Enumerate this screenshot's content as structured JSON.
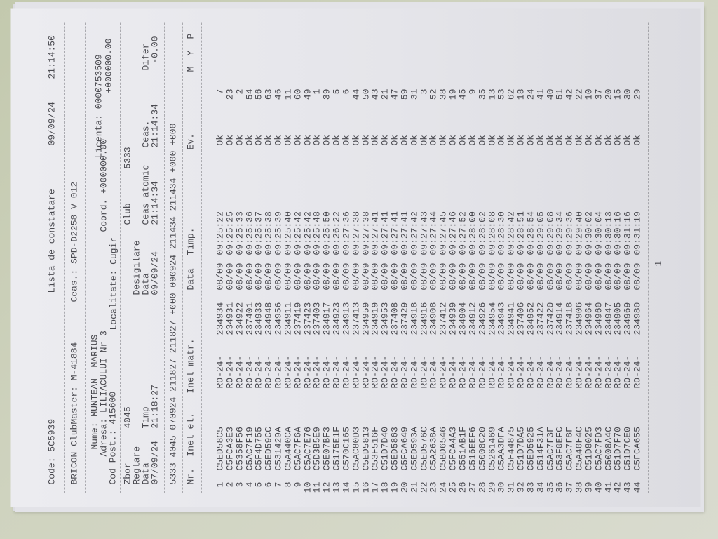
{
  "header": {
    "code": "Code: 5C5939",
    "title": "Lista de constatare",
    "print_date": "09/09/24",
    "print_time": "21:14:50",
    "clubmaster": "BRICON ClubMaster: M-41884",
    "clock": "Ceas.: SPD-D2258 V 012"
  },
  "owner": {
    "name": "Nume: MUNTEAN  MARIUS",
    "address": "Adresa: LILIACULUI Nr 3",
    "postal": "Cod Post.: 415600",
    "locality": "Localitate: Cugir",
    "coord": "Coord. +000000.00",
    "coord2": "+000000.00",
    "license": "Licenta: 0000753509"
  },
  "race": {
    "zbor_label": "Zbor",
    "zbor": "4045",
    "club_label": "Club",
    "club": "5333",
    "reglare": "Reglare",
    "desigilare": "Desigilare",
    "data_label": "Data",
    "timp_label": "Timp",
    "data2_label": "Data",
    "ceas_atomic_label": "Ceas atomic",
    "ceas_label": "Ceas.",
    "difer_label": "Difer",
    "reg_date": "07/09/24",
    "reg_time": "21:18:27",
    "des_date": "09/09/24",
    "atomic_time": "21:14:34",
    "clock_time": "21:14:34",
    "difer": "-0.00",
    "code_line": "5333 4045 070924 211827 211827 +000 090924 211434 211434 +000 +000"
  },
  "table": {
    "columns": [
      "Nr.",
      "Inel el.",
      "Inel matr.",
      "Data",
      "Timp.",
      "Ev.",
      "M",
      "Y",
      "P"
    ],
    "rows": [
      [
        "1",
        "C5ED58C5",
        "RO-24-",
        "234934",
        "08/09",
        "09:25:22",
        "Ok",
        "7"
      ],
      [
        "2",
        "C5FCA3E3",
        "RO-24-",
        "234931",
        "08/09",
        "09:25:25",
        "Ok",
        "23"
      ],
      [
        "3",
        "C5358F56",
        "RO-24-",
        "234922",
        "08/09",
        "09:25:33",
        "Ok",
        "2"
      ],
      [
        "4",
        "C5AC7F19",
        "RO-24-",
        "237401",
        "08/09",
        "09:25:36",
        "Ok",
        "54"
      ],
      [
        "5",
        "C5F4D755",
        "RO-24-",
        "234933",
        "08/09",
        "09:25:37",
        "Ok",
        "56"
      ],
      [
        "6",
        "C5ED59CC",
        "RO-24-",
        "234948",
        "08/09",
        "09:25:38",
        "Ok",
        "63"
      ],
      [
        "7",
        "C531429A",
        "RO-24-",
        "234956",
        "08/09",
        "09:25:39",
        "Ok",
        "46"
      ],
      [
        "8",
        "C5A440CA",
        "RO-24-",
        "234911",
        "08/09",
        "09:25:40",
        "Ok",
        "11"
      ],
      [
        "9",
        "C5AC7F6A",
        "RO-24-",
        "237419",
        "08/09",
        "09:25:42",
        "Ok",
        "60"
      ],
      [
        "10",
        "C5AC7E76",
        "RO-24-",
        "237423",
        "08/09",
        "09:25:42",
        "Ok",
        "49"
      ],
      [
        "11",
        "C5D3B5E9",
        "RO-24-",
        "237403",
        "08/09",
        "09:25:48",
        "Ok",
        "1"
      ],
      [
        "12",
        "C5E07BF3",
        "RO-24-",
        "234917",
        "08/09",
        "09:25:50",
        "Ok",
        "39"
      ],
      [
        "13",
        "C5175E1F",
        "RO-24-",
        "234923",
        "08/09",
        "09:26:22",
        "Ok",
        "5"
      ],
      [
        "14",
        "C570C165",
        "RO-24-",
        "234913",
        "08/09",
        "09:27:36",
        "Ok",
        "6"
      ],
      [
        "15",
        "C5AC80D3",
        "RO-24-",
        "237413",
        "08/09",
        "09:27:38",
        "Ok",
        "44"
      ],
      [
        "16",
        "C5ED5813",
        "RO-24-",
        "234959",
        "08/09",
        "09:27:38",
        "Ok",
        "50"
      ],
      [
        "17",
        "C53F516F",
        "RO-24-",
        "234919",
        "08/09",
        "09:27:41",
        "Ok",
        "43"
      ],
      [
        "18",
        "C51D7D40",
        "RO-24-",
        "234953",
        "08/09",
        "09:27:41",
        "Ok",
        "21"
      ],
      [
        "19",
        "C5ED5863",
        "RO-24-",
        "237408",
        "08/09",
        "09:27:41",
        "Ok",
        "47"
      ],
      [
        "20",
        "C5FCA649",
        "RO-24-",
        "237429",
        "08/09",
        "09:27:41",
        "Ok",
        "59"
      ],
      [
        "21",
        "C5ED593A",
        "RO-24-",
        "234918",
        "08/09",
        "09:27:42",
        "Ok",
        "31"
      ],
      [
        "22",
        "C5ED576C",
        "RO-24-",
        "234916",
        "08/09",
        "09:27:43",
        "Ok",
        "3"
      ],
      [
        "23",
        "C5A2638A",
        "RO-24-",
        "234908",
        "08/09",
        "09:27:44",
        "Ok",
        "52"
      ],
      [
        "24",
        "C5BD6546",
        "RO-24-",
        "237412",
        "08/09",
        "09:27:45",
        "Ok",
        "38"
      ],
      [
        "25",
        "C5FCA4A3",
        "RO-24-",
        "234939",
        "08/09",
        "09:27:46",
        "Ok",
        "19"
      ],
      [
        "26",
        "C551AB1F",
        "RO-24-",
        "234904",
        "08/09",
        "09:27:52",
        "Ok",
        "45"
      ],
      [
        "27",
        "C516EEF6",
        "RO-24-",
        "234912",
        "08/09",
        "09:28:00",
        "Ok",
        "9"
      ],
      [
        "28",
        "C5008C20",
        "RO-24-",
        "234926",
        "08/09",
        "09:28:02",
        "Ok",
        "35"
      ],
      [
        "29",
        "C5261469",
        "RO-24-",
        "234954",
        "08/09",
        "09:28:08",
        "Ok",
        "13"
      ],
      [
        "30",
        "C5AA3DFA",
        "RO-24-",
        "234943",
        "08/09",
        "09:28:30",
        "Ok",
        "53"
      ],
      [
        "31",
        "C5F44875",
        "RO-24-",
        "234941",
        "08/09",
        "09:28:42",
        "Ok",
        "62"
      ],
      [
        "32",
        "C51D7DA5",
        "RO-24-",
        "237406",
        "08/09",
        "09:28:51",
        "Ok",
        "18"
      ],
      [
        "33",
        "C5ED5925",
        "RO-24-",
        "234952",
        "08/09",
        "09:28:54",
        "Ok",
        "24"
      ],
      [
        "34",
        "C514F31A",
        "RO-24-",
        "237422",
        "08/09",
        "09:29:05",
        "Ok",
        "41"
      ],
      [
        "35",
        "C5AC7F3F",
        "RO-24-",
        "237420",
        "08/09",
        "09:29:08",
        "Ok",
        "40"
      ],
      [
        "36",
        "C53F0EFC",
        "RO-24-",
        "234914",
        "08/09",
        "09:29:34",
        "Ok",
        "51"
      ],
      [
        "37",
        "C5AC7F8F",
        "RO-24-",
        "237418",
        "08/09",
        "09:29:36",
        "Ok",
        "42"
      ],
      [
        "38",
        "C5A40F4C",
        "RO-24-",
        "234906",
        "08/09",
        "09:29:40",
        "Ok",
        "22"
      ],
      [
        "39",
        "C51D8025",
        "RO-24-",
        "234964",
        "08/09",
        "09:30:02",
        "Ok",
        "10"
      ],
      [
        "40",
        "C5AC7FD3",
        "RO-24-",
        "234960",
        "08/09",
        "09:30:04",
        "Ok",
        "37"
      ],
      [
        "41",
        "C5008A4C",
        "RO-24-",
        "234947",
        "08/09",
        "09:30:13",
        "Ok",
        "20"
      ],
      [
        "42",
        "C51D7F70",
        "RO-24-",
        "234905",
        "08/09",
        "09:30:16",
        "Ok",
        "15"
      ],
      [
        "43",
        "C51D7CE0",
        "RO-24-",
        "234969",
        "08/09",
        "09:31:16",
        "Ok",
        "30"
      ],
      [
        "44",
        "C5FCA655",
        "RO-24-",
        "234980",
        "08/09",
        "09:31:19",
        "Ok",
        "29"
      ]
    ]
  },
  "footer": {
    "page_number": "1"
  },
  "colors": {
    "paper": "#e8e8ec",
    "ink": "#4a4a50",
    "background": "#c8cdb5"
  }
}
